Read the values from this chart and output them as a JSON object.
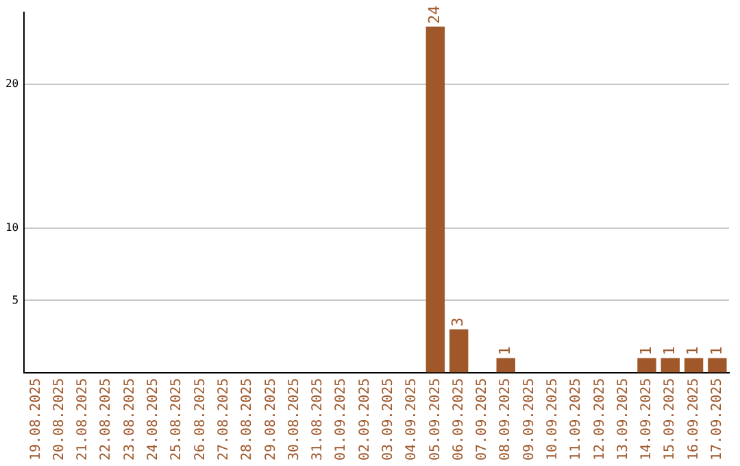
{
  "chart_data": {
    "type": "bar",
    "categories": [
      "19.08.2025",
      "20.08.2025",
      "21.08.2025",
      "22.08.2025",
      "23.08.2025",
      "24.08.2025",
      "25.08.2025",
      "26.08.2025",
      "27.08.2025",
      "28.08.2025",
      "29.08.2025",
      "30.08.2025",
      "31.08.2025",
      "01.09.2025",
      "02.09.2025",
      "03.09.2025",
      "04.09.2025",
      "05.09.2025",
      "06.09.2025",
      "07.09.2025",
      "08.09.2025",
      "09.09.2025",
      "10.09.2025",
      "11.09.2025",
      "12.09.2025",
      "13.09.2025",
      "14.09.2025",
      "15.09.2025",
      "16.09.2025",
      "17.09.2025"
    ],
    "values": [
      0,
      0,
      0,
      0,
      0,
      0,
      0,
      0,
      0,
      0,
      0,
      0,
      0,
      0,
      0,
      0,
      0,
      24,
      3,
      0,
      1,
      0,
      0,
      0,
      0,
      0,
      1,
      1,
      1,
      1
    ],
    "value_labels": [
      null,
      null,
      null,
      null,
      null,
      null,
      null,
      null,
      null,
      null,
      null,
      null,
      null,
      null,
      null,
      null,
      null,
      "24",
      "3",
      null,
      "1",
      null,
      null,
      null,
      null,
      null,
      "1",
      "1",
      "1",
      "1"
    ],
    "color": "#a0582b",
    "ylim": [
      0,
      25
    ],
    "yticks": [
      5,
      10,
      20
    ],
    "grid": "y",
    "legend": false
  }
}
